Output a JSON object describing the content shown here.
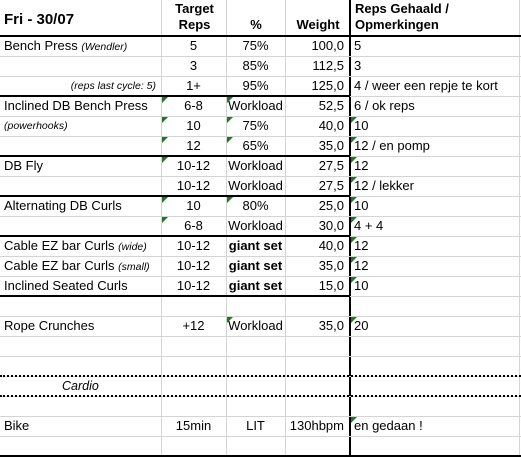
{
  "title": "Fri - 30/07",
  "headers": {
    "target": "Target",
    "reps": "Reps",
    "pct": "%",
    "weight": "Weight",
    "reps_gehaald": "Reps Gehaald /",
    "opmerkingen": "Opmerkingen"
  },
  "rows": [
    {
      "ex": "Bench Press",
      "note": "(Wendler)",
      "reps": "5",
      "pct": "75%",
      "weight": "100,0",
      "comment": "5"
    },
    {
      "ex": "",
      "note": "",
      "reps": "3",
      "pct": "85%",
      "weight": "112,5",
      "comment": "3"
    },
    {
      "ex": "",
      "note": "(reps last cycle: 5)",
      "reps": "1+",
      "pct": "95%",
      "weight": "125,0",
      "comment": "4 / weer een repje te kort"
    },
    {
      "ex": "Inclined DB Bench Press",
      "note": "",
      "reps": "6-8",
      "pct": "Workload",
      "weight": "52,5",
      "comment": "6 / ok reps"
    },
    {
      "ex": "",
      "note": "(powerhooks)",
      "reps": "10",
      "pct": "75%",
      "weight": "40,0",
      "comment": "10"
    },
    {
      "ex": "",
      "note": "",
      "reps": "12",
      "pct": "65%",
      "weight": "35,0",
      "comment": "12 / en pomp"
    },
    {
      "ex": "DB Fly",
      "note": "",
      "reps": "10-12",
      "pct": "Workload",
      "weight": "27,5",
      "comment": "12"
    },
    {
      "ex": "",
      "note": "",
      "reps": "10-12",
      "pct": "Workload",
      "weight": "27,5",
      "comment": "12 / lekker"
    },
    {
      "ex": "Alternating DB Curls",
      "note": "",
      "reps": "10",
      "pct": "80%",
      "weight": "25,0",
      "comment": "10"
    },
    {
      "ex": "",
      "note": "",
      "reps": "6-8",
      "pct": "Workload",
      "weight": "30,0",
      "comment": "4 + 4"
    },
    {
      "ex": "Cable EZ bar Curls",
      "note": "(wide)",
      "reps": "10-12",
      "pct": "giant set",
      "weight": "40,0",
      "comment": "12"
    },
    {
      "ex": "Cable EZ bar Curls",
      "note": "(small)",
      "reps": "10-12",
      "pct": "giant set",
      "weight": "35,0",
      "comment": "12"
    },
    {
      "ex": "Inclined Seated Curls",
      "note": "",
      "reps": "10-12",
      "pct": "giant set",
      "weight": "15,0",
      "comment": "10"
    },
    {
      "ex": "",
      "note": "",
      "reps": "",
      "pct": "",
      "weight": "",
      "comment": ""
    },
    {
      "ex": "Rope Crunches",
      "note": "",
      "reps": "+12",
      "pct": "Workload",
      "weight": "35,0",
      "comment": "20"
    },
    {
      "ex": "",
      "note": "",
      "reps": "",
      "pct": "",
      "weight": "",
      "comment": ""
    },
    {
      "ex": "",
      "note": "",
      "reps": "",
      "pct": "",
      "weight": "",
      "comment": ""
    },
    {
      "ex": "",
      "note": "Cardio",
      "reps": "",
      "pct": "",
      "weight": "",
      "comment": ""
    },
    {
      "ex": "",
      "note": "",
      "reps": "",
      "pct": "",
      "weight": "",
      "comment": ""
    },
    {
      "ex": "Bike",
      "note": "",
      "reps": "15min",
      "pct": "LIT",
      "weight": "130hbpm",
      "comment": "en gedaan !"
    }
  ]
}
